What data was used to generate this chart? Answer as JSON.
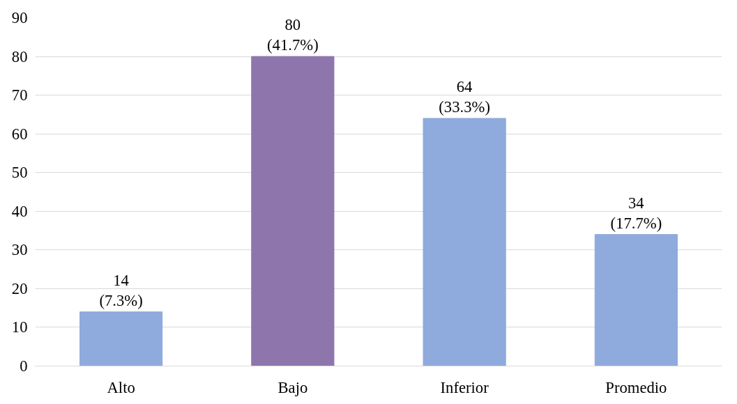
{
  "chart_data": {
    "type": "bar",
    "categories": [
      "Alto",
      "Bajo",
      "Inferior",
      "Promedio"
    ],
    "values": [
      14,
      80,
      64,
      34
    ],
    "colors": [
      "#8faadc",
      "#8e76ad",
      "#8faadc",
      "#8faadc"
    ],
    "value_labels": [
      "14\n(7.3%)",
      "80\n(41.7%)",
      "64\n(33.3%)",
      "34\n(17.7%)"
    ],
    "ylim": [
      0,
      90
    ],
    "yticks": [
      0,
      10,
      20,
      30,
      40,
      50,
      60,
      70,
      80,
      90
    ],
    "grid": "y"
  }
}
